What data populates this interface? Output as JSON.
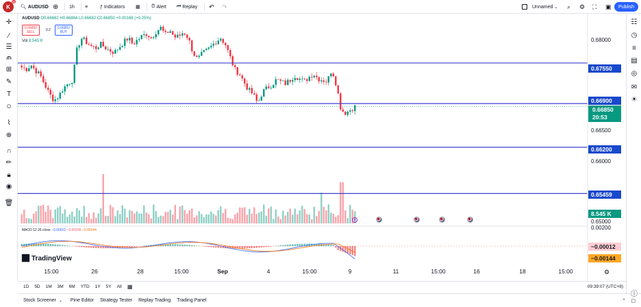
{
  "toolbar": {
    "avatar_letter": "K",
    "avatar_badge": "11",
    "symbol": "AUDUSD",
    "interval": "1h",
    "indicators": "Indicators",
    "alert": "Alert",
    "replay": "Replay",
    "layout_name": "Unnamed",
    "publish": "Publish"
  },
  "legend": {
    "ohlc": "O0.66682 H0.66864 L0.66682 C0.66850 +0.00168 (+0.25%)",
    "sell_price": "0.66850",
    "sell_label": "SELL",
    "spread": "0.2",
    "buy_price": "0.66852",
    "buy_label": "BUY",
    "vol_label": "Vol",
    "vol_value": "8.545 K",
    "macd_name": "MACD 12 26 close",
    "macd_v1": "−0.00012",
    "macd_v2": "−0.00156",
    "macd_v3": "−0.00144"
  },
  "price_axis": {
    "ticks": [
      "0.68000",
      "0.66500",
      "0.66000",
      "0.65000",
      "0.00200"
    ],
    "line_tags": [
      "0.67550",
      "0.66900",
      "0.66200",
      "0.65459"
    ],
    "current_price": "0.66850",
    "countdown": "20:53",
    "volume_tag": "8.545 K",
    "macd_tag_1": "−0.00012",
    "macd_tag_2": "−0.00144"
  },
  "time_axis": [
    "15:00",
    "26",
    "28",
    "15:00",
    "Sep",
    "4",
    "15:00",
    "9",
    "11",
    "15:00",
    "16",
    "18",
    "15:00"
  ],
  "range_buttons": [
    "1D",
    "5D",
    "1M",
    "3M",
    "6M",
    "YTD",
    "1Y",
    "5Y",
    "All"
  ],
  "clock": "09:39:07 (UTC+8)",
  "bottom_tabs": [
    "Stock Screener",
    "Pine Editor",
    "Strategy Tester",
    "Replay Trading",
    "Trading Panel"
  ],
  "brand": "TradingView",
  "colors": {
    "up": "#089981",
    "down": "#f23645",
    "horizontal_line": "#3f3fd0",
    "accent": "#2962ff"
  },
  "chart_data": {
    "type": "candlestick",
    "symbol": "AUDUSD",
    "interval": "1h",
    "horizontal_levels": [
      0.6755,
      0.669,
      0.662,
      0.65459
    ],
    "current_price": 0.6685,
    "ylim": [
      0.6498,
      0.6812
    ],
    "close_path": [
      0.6748,
      0.6745,
      0.6752,
      0.6743,
      0.6735,
      0.672,
      0.6705,
      0.6695,
      0.6702,
      0.6715,
      0.6722,
      0.6728,
      0.678,
      0.6795,
      0.6788,
      0.6782,
      0.6779,
      0.6785,
      0.678,
      0.6775,
      0.6772,
      0.678,
      0.6788,
      0.6795,
      0.6785,
      0.6792,
      0.6798,
      0.6802,
      0.6795,
      0.6805,
      0.6812,
      0.68,
      0.6808,
      0.6796,
      0.6798,
      0.6805,
      0.6795,
      0.6772,
      0.676,
      0.677,
      0.6775,
      0.6782,
      0.679,
      0.6795,
      0.6785,
      0.6765,
      0.6745,
      0.6738,
      0.6725,
      0.6712,
      0.6705,
      0.669,
      0.6708,
      0.6715,
      0.672,
      0.6728,
      0.6725,
      0.6722,
      0.6728,
      0.6735,
      0.673,
      0.6725,
      0.6732,
      0.6738,
      0.673,
      0.6728,
      0.6725,
      0.6745,
      0.672,
      0.668,
      0.6675,
      0.668,
      0.6685
    ]
  }
}
